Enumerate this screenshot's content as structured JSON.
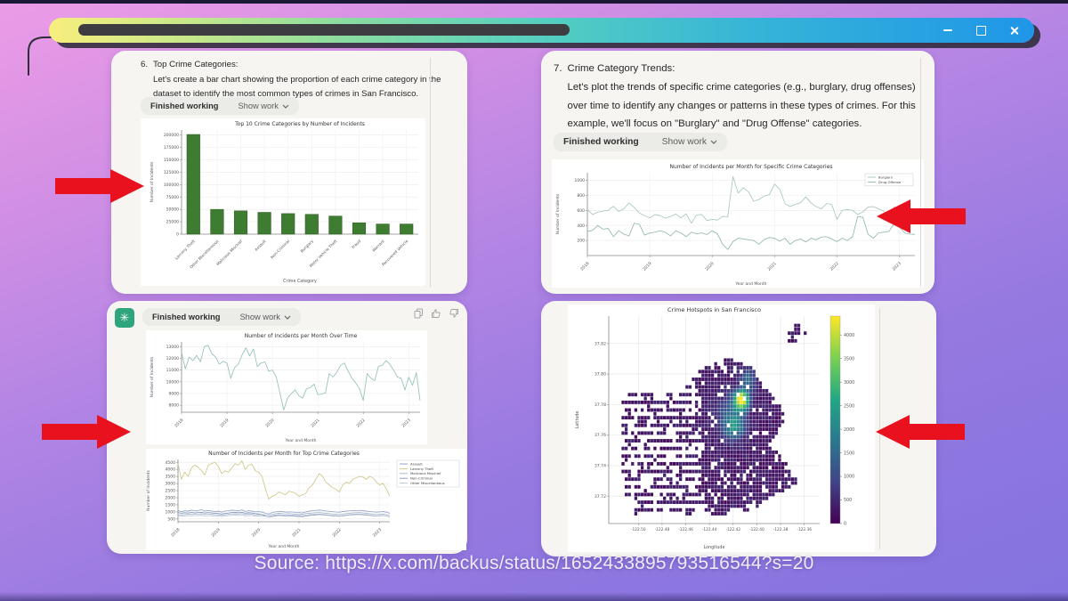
{
  "window": {
    "controls": {
      "minimize": "minimize",
      "maximize": "maximize",
      "close": "close"
    }
  },
  "icons": {
    "chatgpt_logo": "✳"
  },
  "source_caption": "Source: https://x.com/backus/status/1652433895793516544?s=20",
  "colors": {
    "background_top": "#ec9ce6",
    "background_bottom": "#8473df",
    "arrow_red": "#e8111d",
    "titlebar_yellow": "#f7ef7d",
    "titlebar_teal": "#55cfc0",
    "titlebar_blue": "#1f96e8",
    "chatgpt_green": "#2fa57e",
    "bar_green": "#3e7c31",
    "card_bg": "#f6f5f2"
  },
  "panels": {
    "top_left": {
      "step_number": "6.",
      "heading": "Top Crime Categories:",
      "body": "Let's create a bar chart showing the proportion of each crime category in the dataset to identify the most common types of crimes in San Francisco.",
      "status": "Finished working",
      "show_work": "Show work"
    },
    "top_right": {
      "step_number": "7.",
      "heading": "Crime Category Trends:",
      "body": "Let's plot the trends of specific crime categories (e.g., burglary, drug offenses) over time to identify any changes or patterns in these types of crimes. For this example, we'll focus on \"Burglary\" and \"Drug Offense\" categories.",
      "status": "Finished working",
      "show_work": "Show work"
    },
    "bottom_left": {
      "status": "Finished working",
      "show_work": "Show work"
    }
  },
  "chart_data": [
    {
      "type": "bar",
      "title": "Top 10 Crime Categories by Number of Incidents",
      "xlabel": "Crime Category",
      "ylabel": "Number of Incidents",
      "categories": [
        "Larceny Theft",
        "Other Miscellaneous",
        "Malicious Mischief",
        "Assault",
        "Non-Criminal",
        "Burglary",
        "Motor Vehicle Theft",
        "Fraud",
        "Warrant",
        "Recovered Vehicle"
      ],
      "values": [
        201000,
        50000,
        47000,
        44000,
        41500,
        40000,
        36500,
        23000,
        20500,
        20500
      ],
      "ylim": [
        0,
        210000
      ],
      "yticks": [
        0,
        25000,
        50000,
        75000,
        100000,
        125000,
        150000,
        175000,
        200000
      ],
      "bar_color": "#3e7c31",
      "bar_edge": "#2b5a22",
      "grid": true
    },
    {
      "type": "line",
      "title": "Number of Incidents per Month for Specific Crime Categories",
      "xlabel": "Year and Month",
      "ylabel": "Number of Incidents",
      "x_tick_labels": [
        "2018",
        "2019",
        "2020",
        "2021",
        "2022",
        "2023"
      ],
      "x_tick_every": 12,
      "ylim": [
        0,
        1100
      ],
      "yticks": [
        200,
        400,
        600,
        800,
        1000
      ],
      "series": [
        {
          "name": "Burglary",
          "color": "#a6c4bd",
          "values": [
            610,
            545,
            575,
            590,
            600,
            655,
            585,
            620,
            700,
            640,
            565,
            530,
            500,
            545,
            530,
            495,
            520,
            550,
            500,
            555,
            430,
            540,
            545,
            465,
            480,
            470,
            520,
            515,
            1050,
            830,
            900,
            845,
            720,
            745,
            790,
            810,
            950,
            880,
            690,
            650,
            680,
            700,
            780,
            700,
            650,
            620,
            690,
            680,
            480,
            600,
            610,
            600,
            545,
            580,
            645,
            650,
            620,
            590,
            520,
            645,
            600,
            540,
            505,
            450
          ]
        },
        {
          "name": "Drug Offense",
          "color": "#8fb3ad",
          "values": [
            320,
            335,
            400,
            350,
            360,
            250,
            330,
            285,
            260,
            430,
            415,
            270,
            300,
            310,
            330,
            310,
            260,
            330,
            300,
            250,
            310,
            290,
            300,
            280,
            330,
            290,
            150,
            80,
            185,
            230,
            220,
            210,
            200,
            150,
            210,
            240,
            230,
            190,
            230,
            150,
            200,
            220,
            180,
            230,
            210,
            245,
            250,
            220,
            185,
            230,
            200,
            250,
            520,
            505,
            280,
            230,
            300,
            310,
            320,
            420,
            380,
            300,
            285,
            280
          ]
        }
      ]
    },
    {
      "type": "line",
      "title": "Number of Incidents per Month Over Time",
      "xlabel": "Year and Month",
      "ylabel": "Number of Incidents",
      "x_tick_labels": [
        "2018",
        "2019",
        "2020",
        "2021",
        "2022",
        "2023"
      ],
      "x_tick_every": 12,
      "ylim": [
        7400,
        13400
      ],
      "yticks": [
        8000,
        9000,
        10000,
        11000,
        12000,
        13000
      ],
      "series": [
        {
          "name": "Incidents",
          "color": "#8fbdb8",
          "values": [
            12500,
            11100,
            12100,
            11800,
            12250,
            11700,
            13000,
            13100,
            12400,
            12100,
            11500,
            11750,
            11600,
            10300,
            11200,
            11500,
            12300,
            12900,
            12200,
            12800,
            11300,
            11600,
            11700,
            10900,
            11000,
            10400,
            9000,
            7600,
            8600,
            9000,
            9300,
            8800,
            8600,
            9400,
            9500,
            9800,
            8900,
            8950,
            9050,
            10700,
            10400,
            10800,
            11400,
            11600,
            10900,
            10300,
            9900,
            9400,
            8400,
            10700,
            10300,
            10100,
            11300,
            11400,
            11800,
            11500,
            11000,
            10400,
            10300,
            9300,
            10400,
            9700,
            10800,
            8400
          ]
        }
      ]
    },
    {
      "type": "line",
      "title": "Number of Incidents per Month for Top Crime Categories",
      "xlabel": "Year and Month",
      "ylabel": "Number of Incidents",
      "x_tick_labels": [
        "2018",
        "2019",
        "2020",
        "2021",
        "2022",
        "2023"
      ],
      "x_tick_every": 12,
      "ylim": [
        300,
        4700
      ],
      "yticks": [
        500,
        1000,
        1500,
        2000,
        2500,
        3000,
        3500,
        4000,
        4500
      ],
      "legend_outside": true,
      "series": [
        {
          "name": "Assault",
          "color": "#8e9ec4",
          "values": [
            1100,
            1000,
            1080,
            1050,
            1120,
            1080,
            1100,
            1150,
            1050,
            1100,
            1060,
            1010,
            1050,
            980,
            1060,
            1080,
            1120,
            1100,
            1080,
            1130,
            1040,
            1080,
            1050,
            1000,
            1020,
            980,
            900,
            850,
            950,
            1000,
            1040,
            1020,
            980,
            1000,
            990,
            960,
            950,
            930,
            1000,
            1050,
            1080,
            1100,
            1120,
            1100,
            1060,
            1040,
            1010,
            990,
            980,
            1020,
            1050,
            1070,
            1100,
            1080,
            1110,
            1090,
            1050,
            1030,
            1000,
            980,
            1000,
            1020,
            980,
            900
          ]
        },
        {
          "name": "Larceny Theft",
          "color": "#cdc482",
          "values": [
            4400,
            3300,
            3800,
            3500,
            4100,
            4300,
            4150,
            3900,
            3600,
            4300,
            4400,
            4500,
            4200,
            3700,
            3900,
            3800,
            4100,
            4400,
            4300,
            4600,
            4000,
            4300,
            4350,
            3900,
            3800,
            3500,
            2600,
            1900,
            2100,
            2200,
            2400,
            2300,
            2200,
            2450,
            2400,
            2300,
            2100,
            2200,
            2300,
            2700,
            2900,
            3300,
            3700,
            3500,
            3100,
            2900,
            2700,
            2600,
            2400,
            2900,
            3100,
            3000,
            3300,
            3400,
            3500,
            3450,
            3300,
            3500,
            3400,
            3100,
            2900,
            3000,
            2600,
            2100
          ]
        },
        {
          "name": "Malicious Mischief",
          "color": "#9fb3c8",
          "values": [
            800,
            780,
            820,
            850,
            830,
            860,
            840,
            870,
            820,
            850,
            830,
            800,
            790,
            760,
            800,
            830,
            850,
            870,
            840,
            880,
            820,
            850,
            830,
            790,
            820,
            800,
            780,
            750,
            820,
            870,
            900,
            880,
            850,
            880,
            860,
            830,
            850,
            830,
            880,
            900,
            920,
            940,
            950,
            930,
            900,
            880,
            850,
            830,
            810,
            850,
            880,
            900,
            930,
            940,
            950,
            930,
            900,
            870,
            840,
            810,
            830,
            850,
            800,
            740
          ]
        },
        {
          "name": "Non-Criminal",
          "color": "#7f93b8",
          "values": [
            950,
            900,
            940,
            920,
            960,
            930,
            950,
            970,
            920,
            950,
            930,
            900,
            890,
            850,
            900,
            920,
            950,
            960,
            940,
            970,
            910,
            940,
            920,
            880,
            850,
            800,
            700,
            620,
            680,
            720,
            750,
            730,
            700,
            730,
            720,
            690,
            680,
            660,
            700,
            740,
            770,
            790,
            810,
            800,
            770,
            750,
            720,
            700,
            690,
            720,
            750,
            770,
            800,
            810,
            820,
            800,
            770,
            750,
            720,
            700,
            720,
            740,
            700,
            640
          ]
        },
        {
          "name": "Other Miscellaneous",
          "color": "#b7c2d8",
          "values": [
            700,
            680,
            720,
            740,
            720,
            750,
            730,
            760,
            710,
            740,
            720,
            690,
            700,
            670,
            710,
            730,
            750,
            770,
            740,
            780,
            720,
            750,
            730,
            690,
            720,
            700,
            680,
            650,
            720,
            770,
            800,
            780,
            750,
            780,
            760,
            730,
            750,
            730,
            780,
            800,
            820,
            840,
            850,
            830,
            800,
            780,
            750,
            730,
            710,
            750,
            780,
            800,
            830,
            840,
            850,
            830,
            800,
            770,
            740,
            710,
            730,
            750,
            700,
            640
          ]
        }
      ]
    },
    {
      "type": "heatmap",
      "title": "Crime Hotspots in San Francisco",
      "xlabel": "Longitude",
      "ylabel": "Latitude",
      "xlim": [
        -122.525,
        -122.347
      ],
      "ylim": [
        37.702,
        37.838
      ],
      "xticks": [
        -122.5,
        -122.48,
        -122.46,
        -122.44,
        -122.42,
        -122.4,
        -122.38,
        -122.36
      ],
      "yticks": [
        37.82,
        37.8,
        37.78,
        37.76,
        37.74,
        37.72
      ],
      "colorbar_ticks": [
        0,
        500,
        1000,
        1500,
        2000,
        2500,
        3000,
        3500,
        4000
      ],
      "vmax": 4400,
      "streak_west_of": -122.447,
      "outline": [
        [
          -122.515,
          37.781
        ],
        [
          -122.507,
          37.788
        ],
        [
          -122.49,
          37.788
        ],
        [
          -122.483,
          37.791
        ],
        [
          -122.472,
          37.787
        ],
        [
          -122.458,
          37.792
        ],
        [
          -122.448,
          37.803
        ],
        [
          -122.438,
          37.806
        ],
        [
          -122.425,
          37.81
        ],
        [
          -122.412,
          37.808
        ],
        [
          -122.404,
          37.804
        ],
        [
          -122.398,
          37.796
        ],
        [
          -122.39,
          37.79
        ],
        [
          -122.382,
          37.782
        ],
        [
          -122.376,
          37.772
        ],
        [
          -122.382,
          37.762
        ],
        [
          -122.388,
          37.755
        ],
        [
          -122.376,
          37.743
        ],
        [
          -122.365,
          37.728
        ],
        [
          -122.38,
          37.722
        ],
        [
          -122.388,
          37.72
        ],
        [
          -122.396,
          37.714
        ],
        [
          -122.405,
          37.71
        ],
        [
          -122.42,
          37.712
        ],
        [
          -122.43,
          37.706
        ],
        [
          -122.445,
          37.706
        ],
        [
          -122.46,
          37.706
        ],
        [
          -122.48,
          37.706
        ],
        [
          -122.502,
          37.706
        ],
        [
          -122.508,
          37.712
        ],
        [
          -122.512,
          37.725
        ],
        [
          -122.514,
          37.74
        ],
        [
          -122.515,
          37.76
        ]
      ],
      "islands": [
        [
          -122.3705,
          37.8235,
          0.004
        ],
        [
          -122.3655,
          37.8295,
          0.0035
        ],
        [
          -122.359,
          37.826,
          0.0015
        ]
      ],
      "holes": [
        [
          -122.494,
          37.729,
          0.0055
        ],
        [
          -122.447,
          37.708,
          0.005
        ],
        [
          -122.403,
          37.71,
          0.004
        ]
      ],
      "hotspots": [
        [
          -122.413,
          37.783,
          4300,
          0.0045
        ],
        [
          -122.419,
          37.765,
          1500,
          0.006
        ],
        [
          -122.407,
          37.797,
          1100,
          0.005
        ],
        [
          -122.423,
          37.773,
          900,
          0.009
        ]
      ]
    }
  ]
}
